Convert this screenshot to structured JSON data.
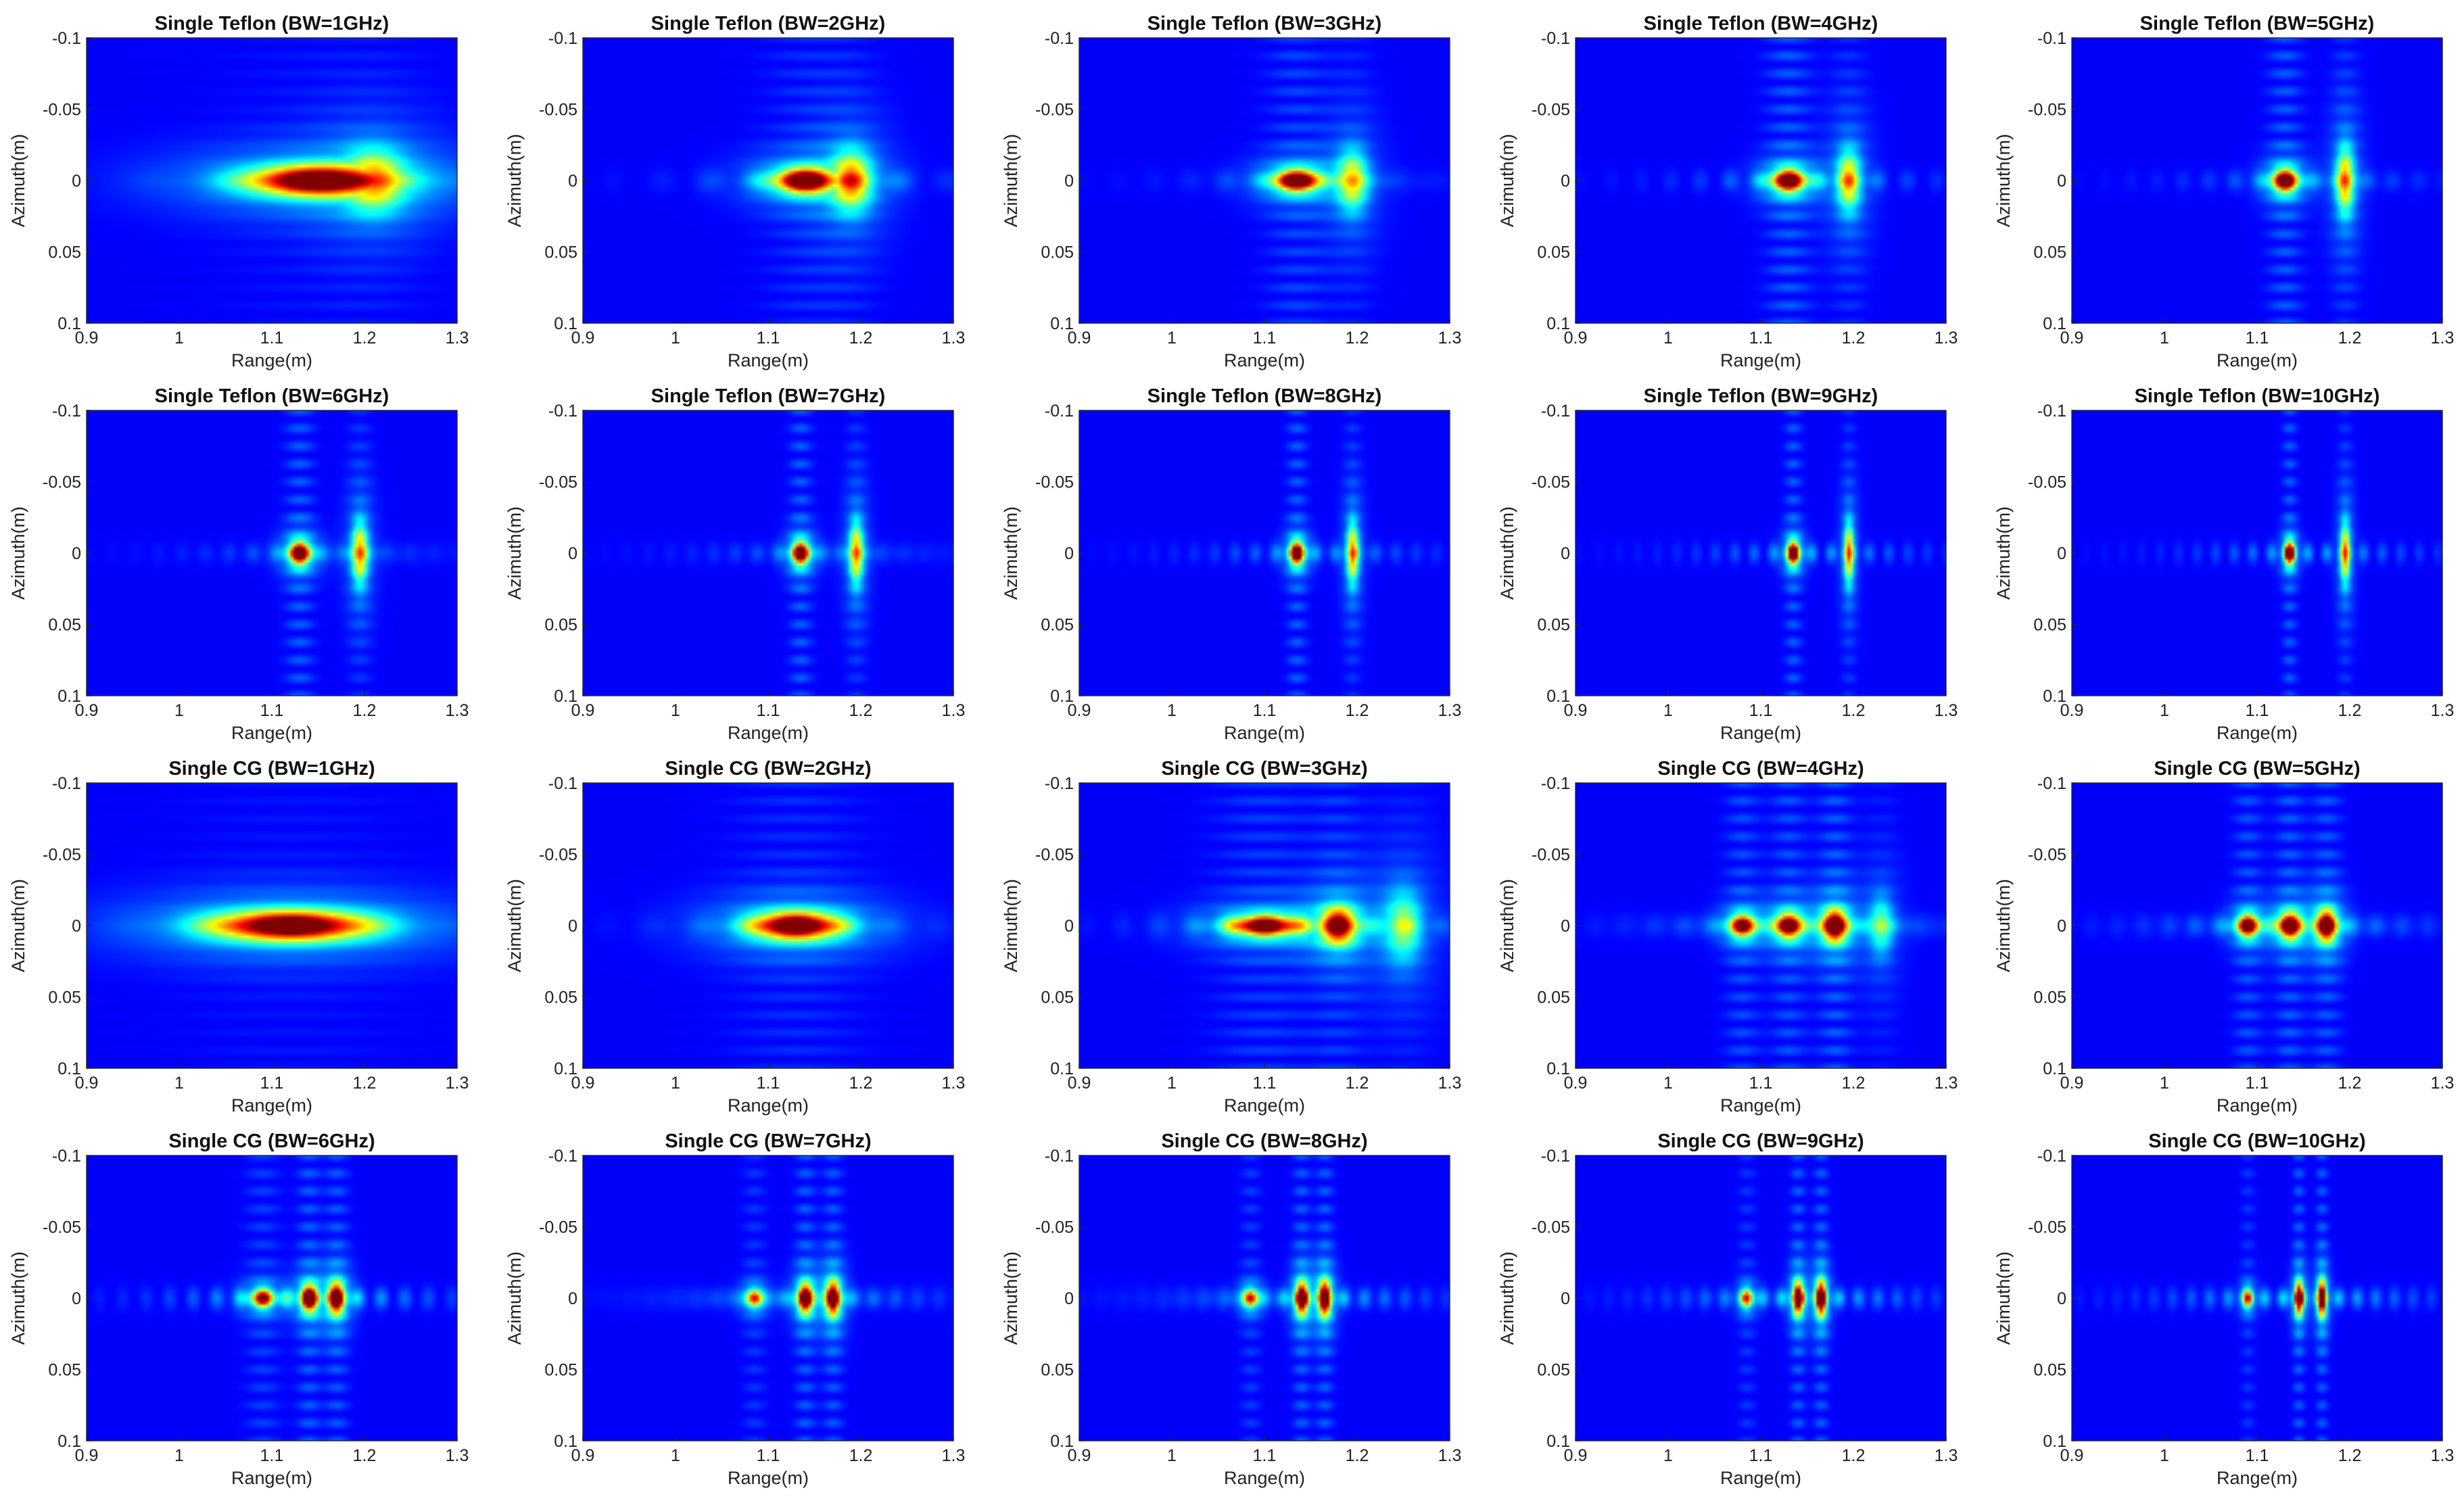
{
  "chart_data": {
    "type": "heatmap",
    "layout": "grid-4x5",
    "colormap": "jet",
    "shared_axes": {
      "xlabel": "Range(m)",
      "ylabel": "Azimuth(m)",
      "xlim": [
        0.9,
        1.3
      ],
      "ylim": [
        -0.1,
        0.1
      ],
      "x_ticks": [
        0.9,
        1,
        1.1,
        1.2,
        1.3
      ],
      "x_tick_labels": [
        "0.9",
        "1",
        "1.1",
        "1.2",
        "1.3"
      ],
      "y_ticks": [
        -0.1,
        -0.05,
        0,
        0.05,
        0.1
      ],
      "y_tick_labels": [
        "-0.1",
        "-0.05",
        "0",
        "0.05",
        "0.1"
      ],
      "y_direction": "reverse"
    },
    "panels": [
      {
        "title": "Single Teflon (BW=1GHz)",
        "bandwidth_ghz": 1,
        "material": "Teflon",
        "peaks": [
          {
            "range": 1.15,
            "azimuth": 0,
            "amplitude": 1.0,
            "range_width": 0.07,
            "azimuth_width": 0.01
          },
          {
            "range": 1.21,
            "azimuth": 0,
            "amplitude": 0.45,
            "range_width": 0.03,
            "azimuth_width": 0.02
          }
        ]
      },
      {
        "title": "Single Teflon (BW=2GHz)",
        "bandwidth_ghz": 2,
        "material": "Teflon",
        "peaks": [
          {
            "range": 1.14,
            "azimuth": 0,
            "amplitude": 1.0,
            "range_width": 0.03,
            "azimuth_width": 0.008
          },
          {
            "range": 1.19,
            "azimuth": 0,
            "amplitude": 0.5,
            "range_width": 0.02,
            "azimuth_width": 0.02
          }
        ]
      },
      {
        "title": "Single Teflon (BW=3GHz)",
        "bandwidth_ghz": 3,
        "material": "Teflon",
        "peaks": [
          {
            "range": 1.135,
            "azimuth": 0,
            "amplitude": 1.0,
            "range_width": 0.022,
            "azimuth_width": 0.007
          },
          {
            "range": 1.195,
            "azimuth": 0,
            "amplitude": 0.45,
            "range_width": 0.015,
            "azimuth_width": 0.02
          }
        ]
      },
      {
        "title": "Single Teflon (BW=4GHz)",
        "bandwidth_ghz": 4,
        "material": "Teflon",
        "peaks": [
          {
            "range": 1.13,
            "azimuth": 0,
            "amplitude": 1.0,
            "range_width": 0.016,
            "azimuth_width": 0.007
          },
          {
            "range": 1.195,
            "azimuth": 0,
            "amplitude": 0.5,
            "range_width": 0.012,
            "azimuth_width": 0.02
          }
        ]
      },
      {
        "title": "Single Teflon (BW=5GHz)",
        "bandwidth_ghz": 5,
        "material": "Teflon",
        "peaks": [
          {
            "range": 1.13,
            "azimuth": 0,
            "amplitude": 1.0,
            "range_width": 0.012,
            "azimuth_width": 0.007
          },
          {
            "range": 1.195,
            "azimuth": 0,
            "amplitude": 0.55,
            "range_width": 0.009,
            "azimuth_width": 0.022
          }
        ]
      },
      {
        "title": "Single Teflon (BW=6GHz)",
        "bandwidth_ghz": 6,
        "material": "Teflon",
        "peaks": [
          {
            "range": 1.13,
            "azimuth": 0,
            "amplitude": 1.0,
            "range_width": 0.01,
            "azimuth_width": 0.007
          },
          {
            "range": 1.195,
            "azimuth": 0,
            "amplitude": 0.55,
            "range_width": 0.008,
            "azimuth_width": 0.02
          }
        ]
      },
      {
        "title": "Single Teflon (BW=7GHz)",
        "bandwidth_ghz": 7,
        "material": "Teflon",
        "peaks": [
          {
            "range": 1.135,
            "azimuth": 0,
            "amplitude": 1.0,
            "range_width": 0.008,
            "azimuth_width": 0.007
          },
          {
            "range": 1.195,
            "azimuth": 0,
            "amplitude": 0.55,
            "range_width": 0.007,
            "azimuth_width": 0.02
          }
        ]
      },
      {
        "title": "Single Teflon (BW=8GHz)",
        "bandwidth_ghz": 8,
        "material": "Teflon",
        "peaks": [
          {
            "range": 1.135,
            "azimuth": 0,
            "amplitude": 1.0,
            "range_width": 0.007,
            "azimuth_width": 0.007
          },
          {
            "range": 1.195,
            "azimuth": 0,
            "amplitude": 0.55,
            "range_width": 0.006,
            "azimuth_width": 0.02
          }
        ]
      },
      {
        "title": "Single Teflon (BW=9GHz)",
        "bandwidth_ghz": 9,
        "material": "Teflon",
        "peaks": [
          {
            "range": 1.135,
            "azimuth": 0,
            "amplitude": 1.0,
            "range_width": 0.006,
            "azimuth_width": 0.007
          },
          {
            "range": 1.195,
            "azimuth": 0,
            "amplitude": 0.55,
            "range_width": 0.005,
            "azimuth_width": 0.02
          }
        ]
      },
      {
        "title": "Single Teflon (BW=10GHz)",
        "bandwidth_ghz": 10,
        "material": "Teflon",
        "peaks": [
          {
            "range": 1.135,
            "azimuth": 0,
            "amplitude": 1.0,
            "range_width": 0.005,
            "azimuth_width": 0.007
          },
          {
            "range": 1.195,
            "azimuth": 0,
            "amplitude": 0.55,
            "range_width": 0.005,
            "azimuth_width": 0.02
          }
        ]
      },
      {
        "title": "Single CG (BW=1GHz)",
        "bandwidth_ghz": 1,
        "material": "CG",
        "peaks": [
          {
            "range": 1.12,
            "azimuth": 0,
            "amplitude": 1.0,
            "range_width": 0.08,
            "azimuth_width": 0.01
          }
        ]
      },
      {
        "title": "Single CG (BW=2GHz)",
        "bandwidth_ghz": 2,
        "material": "CG",
        "peaks": [
          {
            "range": 1.13,
            "azimuth": 0,
            "amplitude": 1.0,
            "range_width": 0.045,
            "azimuth_width": 0.009
          }
        ]
      },
      {
        "title": "Single CG (BW=3GHz)",
        "bandwidth_ghz": 3,
        "material": "CG",
        "peaks": [
          {
            "range": 1.1,
            "azimuth": 0,
            "amplitude": 0.9,
            "range_width": 0.035,
            "azimuth_width": 0.007
          },
          {
            "range": 1.18,
            "azimuth": 0,
            "amplitude": 0.8,
            "range_width": 0.018,
            "azimuth_width": 0.012
          },
          {
            "range": 1.25,
            "azimuth": 0,
            "amplitude": 0.35,
            "range_width": 0.02,
            "azimuth_width": 0.025
          }
        ]
      },
      {
        "title": "Single CG (BW=4GHz)",
        "bandwidth_ghz": 4,
        "material": "CG",
        "peaks": [
          {
            "range": 1.08,
            "azimuth": 0,
            "amplitude": 0.85,
            "range_width": 0.012,
            "azimuth_width": 0.007
          },
          {
            "range": 1.13,
            "azimuth": 0,
            "amplitude": 0.9,
            "range_width": 0.012,
            "azimuth_width": 0.008
          },
          {
            "range": 1.18,
            "azimuth": 0,
            "amplitude": 1.0,
            "range_width": 0.012,
            "azimuth_width": 0.01
          },
          {
            "range": 1.23,
            "azimuth": 0,
            "amplitude": 0.3,
            "range_width": 0.012,
            "azimuth_width": 0.02
          }
        ]
      },
      {
        "title": "Single CG (BW=5GHz)",
        "bandwidth_ghz": 5,
        "material": "CG",
        "peaks": [
          {
            "range": 1.09,
            "azimuth": 0,
            "amplitude": 0.9,
            "range_width": 0.01,
            "azimuth_width": 0.007
          },
          {
            "range": 1.135,
            "azimuth": 0,
            "amplitude": 1.0,
            "range_width": 0.01,
            "azimuth_width": 0.008
          },
          {
            "range": 1.175,
            "azimuth": 0,
            "amplitude": 0.95,
            "range_width": 0.01,
            "azimuth_width": 0.01
          }
        ]
      },
      {
        "title": "Single CG (BW=6GHz)",
        "bandwidth_ghz": 6,
        "material": "CG",
        "peaks": [
          {
            "range": 1.09,
            "azimuth": 0,
            "amplitude": 0.7,
            "range_width": 0.012,
            "azimuth_width": 0.006
          },
          {
            "range": 1.14,
            "azimuth": 0,
            "amplitude": 1.0,
            "range_width": 0.008,
            "azimuth_width": 0.008
          },
          {
            "range": 1.17,
            "azimuth": 0,
            "amplitude": 0.95,
            "range_width": 0.008,
            "azimuth_width": 0.01
          }
        ]
      },
      {
        "title": "Single CG (BW=7GHz)",
        "bandwidth_ghz": 7,
        "material": "CG",
        "peaks": [
          {
            "range": 1.085,
            "azimuth": 0,
            "amplitude": 0.6,
            "range_width": 0.008,
            "azimuth_width": 0.006
          },
          {
            "range": 1.14,
            "azimuth": 0,
            "amplitude": 1.0,
            "range_width": 0.007,
            "azimuth_width": 0.009
          },
          {
            "range": 1.17,
            "azimuth": 0,
            "amplitude": 0.95,
            "range_width": 0.007,
            "azimuth_width": 0.011
          }
        ]
      },
      {
        "title": "Single CG (BW=8GHz)",
        "bandwidth_ghz": 8,
        "material": "CG",
        "peaks": [
          {
            "range": 1.085,
            "azimuth": 0,
            "amplitude": 0.65,
            "range_width": 0.007,
            "azimuth_width": 0.006
          },
          {
            "range": 1.14,
            "azimuth": 0,
            "amplitude": 1.0,
            "range_width": 0.006,
            "azimuth_width": 0.01
          },
          {
            "range": 1.165,
            "azimuth": 0,
            "amplitude": 1.0,
            "range_width": 0.006,
            "azimuth_width": 0.011
          }
        ]
      },
      {
        "title": "Single CG (BW=9GHz)",
        "bandwidth_ghz": 9,
        "material": "CG",
        "peaks": [
          {
            "range": 1.085,
            "azimuth": 0,
            "amplitude": 0.6,
            "range_width": 0.006,
            "azimuth_width": 0.006
          },
          {
            "range": 1.14,
            "azimuth": 0,
            "amplitude": 1.0,
            "range_width": 0.005,
            "azimuth_width": 0.01
          },
          {
            "range": 1.165,
            "azimuth": 0,
            "amplitude": 1.0,
            "range_width": 0.005,
            "azimuth_width": 0.011
          }
        ]
      },
      {
        "title": "Single CG (BW=10GHz)",
        "bandwidth_ghz": 10,
        "material": "CG",
        "peaks": [
          {
            "range": 1.09,
            "azimuth": 0,
            "amplitude": 0.6,
            "range_width": 0.005,
            "azimuth_width": 0.006
          },
          {
            "range": 1.145,
            "azimuth": 0,
            "amplitude": 1.0,
            "range_width": 0.004,
            "azimuth_width": 0.01
          },
          {
            "range": 1.17,
            "azimuth": 0,
            "amplitude": 1.0,
            "range_width": 0.004,
            "azimuth_width": 0.011
          }
        ]
      }
    ]
  }
}
